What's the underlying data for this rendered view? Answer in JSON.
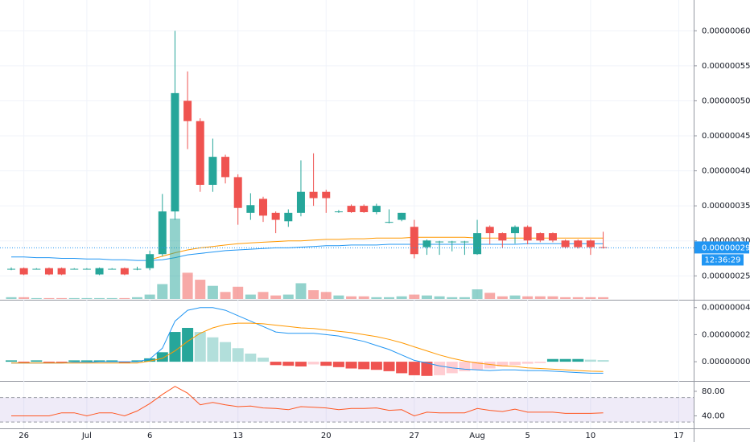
{
  "chart_data": [
    {
      "type": "candlestick",
      "categories": [
        null,
        "26",
        null,
        null,
        null,
        null,
        "Jul",
        null,
        null,
        null,
        null,
        "6",
        null,
        null,
        null,
        null,
        null,
        null,
        "13",
        null,
        null,
        null,
        null,
        null,
        null,
        "20",
        null,
        null,
        null,
        null,
        null,
        null,
        "27",
        null,
        null,
        null,
        null,
        "Aug",
        null,
        null,
        null,
        "5",
        null,
        null,
        null,
        null,
        "10",
        null,
        null,
        null,
        null,
        null,
        null,
        "17"
      ],
      "open": [
        2.6e-07,
        2.61e-07,
        2.6e-07,
        2.61e-07,
        2.61e-07,
        2.6e-07,
        2.6e-07,
        2.52e-07,
        2.6e-07,
        2.61e-07,
        2.6e-07,
        2.61e-07,
        2.81e-07,
        3.42e-07,
        5e-07,
        4.71e-07,
        3.8e-07,
        4.2e-07,
        3.91e-07,
        3.4e-07,
        3.6e-07,
        3.4e-07,
        3.28e-07,
        3.4e-07,
        3.7e-07,
        3.7e-07,
        3.42e-07,
        3.5e-07,
        3.5e-07,
        3.41e-07,
        3.27e-07,
        3.3e-07,
        3.2e-07,
        2.91e-07,
        2.99e-07,
        2.99e-07,
        2.99e-07,
        2.81e-07,
        3.2e-07,
        3.11e-07,
        3.11e-07,
        3.2e-07,
        3.11e-07,
        3.11e-07,
        3.005e-07,
        3.005e-07,
        3.005e-07,
        2.91e-07,
        null,
        null,
        null,
        null,
        null,
        null
      ],
      "high": [
        2.62e-07,
        2.62e-07,
        2.61e-07,
        2.62e-07,
        2.62e-07,
        2.61e-07,
        2.61e-07,
        2.62e-07,
        2.61e-07,
        2.62e-07,
        2.63e-07,
        2.86e-07,
        3.67e-07,
        6e-07,
        5.42e-07,
        4.75e-07,
        4.46e-07,
        4.23e-07,
        3.95e-07,
        3.68e-07,
        3.63e-07,
        3.42e-07,
        3.45e-07,
        4.15e-07,
        4.25e-07,
        3.73e-07,
        3.44e-07,
        3.52e-07,
        3.52e-07,
        3.53e-07,
        3.45e-07,
        3.4e-07,
        3.3e-07,
        3.02e-07,
        3e-07,
        3e-07,
        3e-07,
        3.3e-07,
        3.22e-07,
        3.12e-07,
        3.22e-07,
        3.22e-07,
        3.12e-07,
        3.12e-07,
        3.02e-07,
        3.02e-07,
        3.02e-07,
        3.13e-07,
        null,
        null,
        null,
        null,
        null,
        null
      ],
      "low": [
        2.58e-07,
        2.51e-07,
        2.59e-07,
        2.51e-07,
        2.51e-07,
        2.59e-07,
        2.59e-07,
        2.51e-07,
        2.59e-07,
        2.51e-07,
        2.58e-07,
        2.58e-07,
        2.78e-07,
        3.3e-07,
        4.31e-07,
        3.7e-07,
        3.7e-07,
        3.82e-07,
        3.23e-07,
        3.3e-07,
        3.27e-07,
        3.11e-07,
        3.2e-07,
        3.35e-07,
        3.5e-07,
        3.4e-07,
        3.4e-07,
        3.4e-07,
        3.4e-07,
        3.38e-07,
        3.25e-07,
        3.28e-07,
        2.75e-07,
        2.8e-07,
        2.8e-07,
        2.85e-07,
        2.8e-07,
        2.8e-07,
        2.95e-07,
        2.9e-07,
        2.96e-07,
        2.95e-07,
        2.98e-07,
        2.98e-07,
        2.89e-07,
        2.89e-07,
        2.8e-07,
        2.89e-07,
        null,
        null,
        null,
        null,
        null,
        null
      ],
      "close": [
        2.6e-07,
        2.52e-07,
        2.6e-07,
        2.52e-07,
        2.52e-07,
        2.6e-07,
        2.6e-07,
        2.61e-07,
        2.6e-07,
        2.52e-07,
        2.6e-07,
        2.81e-07,
        3.42e-07,
        5.11e-07,
        4.71e-07,
        3.8e-07,
        4.2e-07,
        3.91e-07,
        3.47e-07,
        3.51e-07,
        3.36e-07,
        3.3e-07,
        3.4e-07,
        3.7e-07,
        3.61e-07,
        3.61e-07,
        3.42e-07,
        3.41e-07,
        3.41e-07,
        3.5e-07,
        3.27e-07,
        3.4e-07,
        2.81e-07,
        3.005e-07,
        2.99e-07,
        2.99e-07,
        2.99e-07,
        3.11e-07,
        3.11e-07,
        3.005e-07,
        3.2e-07,
        3.005e-07,
        3.005e-07,
        3.005e-07,
        2.91e-07,
        2.91e-07,
        2.91e-07,
        2.9e-07,
        null,
        null,
        null,
        null,
        null,
        null
      ],
      "up_color": "#26a69a",
      "down_color": "#ef5350",
      "series": [
        {
          "color": "#2196f3",
          "values": [
            2.77e-07,
            2.77e-07,
            2.76e-07,
            2.76e-07,
            2.75e-07,
            2.75e-07,
            2.74e-07,
            2.74e-07,
            2.73e-07,
            2.73e-07,
            2.72e-07,
            2.72e-07,
            2.73e-07,
            2.76e-07,
            2.8e-07,
            2.82e-07,
            2.84e-07,
            2.86e-07,
            2.87e-07,
            2.88e-07,
            2.89e-07,
            2.9e-07,
            2.9e-07,
            2.91e-07,
            2.92e-07,
            2.93e-07,
            2.93e-07,
            2.94e-07,
            2.94e-07,
            2.94e-07,
            2.95e-07,
            2.95e-07,
            2.95e-07,
            2.95e-07,
            2.95e-07,
            2.95e-07,
            2.95e-07,
            2.95e-07,
            2.95e-07,
            2.95e-07,
            2.95e-07,
            2.96e-07,
            2.96e-07,
            2.96e-07,
            2.96e-07,
            2.96e-07,
            2.96e-07,
            2.96e-07,
            null,
            null,
            null,
            null,
            null,
            null
          ]
        },
        {
          "color": "#ff9800",
          "values": [
            null,
            null,
            null,
            null,
            null,
            null,
            null,
            null,
            null,
            null,
            null,
            2.73e-07,
            2.78e-07,
            2.83e-07,
            2.87e-07,
            2.9e-07,
            2.92e-07,
            2.94e-07,
            2.96e-07,
            2.97e-07,
            2.98e-07,
            2.99e-07,
            3e-07,
            3e-07,
            3.01e-07,
            3.02e-07,
            3.02e-07,
            3.03e-07,
            3.03e-07,
            3.04e-07,
            3.04e-07,
            3.04e-07,
            3.05e-07,
            3.05e-07,
            3.05e-07,
            3.05e-07,
            3.05e-07,
            3.04e-07,
            3.04e-07,
            3.04e-07,
            3.04e-07,
            3.04e-07,
            3.04e-07,
            3.04e-07,
            3.04e-07,
            3.04e-07,
            3.04e-07,
            3.04e-07,
            null,
            null,
            null,
            null,
            null,
            null
          ]
        }
      ],
      "ylim": [
        2.17e-07,
        6.44e-07
      ],
      "yticks": [
        {
          "value": 2.5e-07,
          "label": "0.00000025"
        },
        {
          "value": 3e-07,
          "label": "0.00000030"
        },
        {
          "value": 3.5e-07,
          "label": "0.00000035"
        },
        {
          "value": 4e-07,
          "label": "0.00000040"
        },
        {
          "value": 4.5e-07,
          "label": "0.00000045"
        },
        {
          "value": 5e-07,
          "label": "0.00000050"
        },
        {
          "value": 5.5e-07,
          "label": "0.00000055"
        },
        {
          "value": 6e-07,
          "label": "0.00000060"
        }
      ],
      "last_price": {
        "value": 2.9e-07,
        "label": "0.00000029"
      },
      "last_color": "#2196f3",
      "countdown": "12:36:29",
      "grid": true
    },
    {
      "type": "bar",
      "values": [
        2,
        2,
        1,
        1,
        1,
        1,
        1,
        1,
        1,
        1,
        2,
        5,
        17,
        92,
        30,
        22,
        15,
        8,
        14,
        5,
        8,
        4,
        5,
        18,
        10,
        8,
        4,
        3,
        3,
        2,
        2,
        3,
        5,
        4,
        3,
        2,
        2,
        11,
        7,
        3,
        4,
        3,
        3,
        3,
        2,
        2,
        2,
        2,
        null,
        null,
        null,
        null,
        null,
        null
      ],
      "up_color": "rgba(38,166,154,0.5)",
      "down_color": "rgba(239,83,80,0.5)"
    },
    {
      "type": "macd",
      "histogram": [
        1e-09,
        -1e-09,
        1e-09,
        -1e-09,
        -1e-09,
        1e-09,
        1e-09,
        1e-09,
        1e-09,
        -1e-09,
        1e-09,
        2.5e-09,
        7e-09,
        2.2e-08,
        2.5e-08,
        2.2e-08,
        1.8e-08,
        1.45e-08,
        1e-08,
        6e-09,
        3e-09,
        -2.5e-09,
        -3e-09,
        -3.5e-09,
        -2e-09,
        -3e-09,
        -4e-09,
        -5e-09,
        -5.5e-09,
        -6e-09,
        -7e-09,
        -8.5e-09,
        -1e-08,
        -1.05e-08,
        -1e-08,
        -8.5e-09,
        -7e-09,
        -6e-09,
        -5e-09,
        -3.5e-09,
        -2.5e-09,
        -1.5e-09,
        -1e-09,
        2e-09,
        2e-09,
        2e-09,
        1.5e-09,
        1.2e-09,
        null,
        null,
        null,
        null,
        null,
        null
      ],
      "histogram_colors": [
        "#26a69a",
        "#b2dfdb",
        "#ef5350",
        "#ffcdd2"
      ],
      "series": [
        {
          "color": "#2196f3",
          "values": [
            -1e-09,
            -1e-09,
            -1e-09,
            -1e-09,
            -1e-09,
            -5e-10,
            -5e-10,
            0,
            0,
            0,
            0,
            2e-09,
            1e-08,
            3e-08,
            3.8e-08,
            4e-08,
            4e-08,
            3.8e-08,
            3.4e-08,
            3e-08,
            2.6e-08,
            2.2e-08,
            2.1e-08,
            2.1e-08,
            2.1e-08,
            2e-08,
            1.9e-08,
            1.7e-08,
            1.5e-08,
            1.2e-08,
            9e-09,
            5e-09,
            1e-09,
            -1e-09,
            -3e-09,
            -4.5e-09,
            -5.5e-09,
            -6e-09,
            -6.5e-09,
            -6e-09,
            -6e-09,
            -6.5e-09,
            -6.5e-09,
            -7e-09,
            -7.5e-09,
            -8e-09,
            -8.5e-09,
            -8.5e-09,
            null,
            null,
            null,
            null,
            null,
            null
          ]
        },
        {
          "color": "#ff9800",
          "values": [
            -1e-09,
            -1e-09,
            -1e-09,
            -1e-09,
            -1e-09,
            -1e-09,
            -1e-09,
            -1e-09,
            -1e-09,
            -1e-09,
            -1e-09,
            5e-10,
            2.5e-09,
            8e-09,
            1.5e-08,
            2.1e-08,
            2.5e-08,
            2.75e-08,
            2.85e-08,
            2.85e-08,
            2.8e-08,
            2.7e-08,
            2.6e-08,
            2.5e-08,
            2.45e-08,
            2.35e-08,
            2.25e-08,
            2.15e-08,
            2e-08,
            1.85e-08,
            1.65e-08,
            1.4e-08,
            1.1e-08,
            8e-09,
            5e-09,
            2.5e-09,
            5e-10,
            -1e-09,
            -2e-09,
            -3e-09,
            -3.5e-09,
            -4.5e-09,
            -5e-09,
            -5.5e-09,
            -6e-09,
            -6.5e-09,
            -7e-09,
            -7.2e-09,
            null,
            null,
            null,
            null,
            null,
            null
          ]
        }
      ],
      "ylim": [
        -1.3e-08,
        4.4e-08
      ],
      "yticks": [
        {
          "value": 0,
          "label": "0.00000000"
        },
        {
          "value": 2e-08,
          "label": "0.00000002"
        },
        {
          "value": 4e-08,
          "label": "0.00000004"
        }
      ]
    },
    {
      "type": "line",
      "values": [
        40,
        40,
        40,
        40,
        45,
        45,
        40,
        45,
        45,
        40,
        48,
        60,
        75,
        88,
        77,
        58,
        62,
        58,
        55,
        56,
        53,
        52,
        50,
        55,
        54,
        53,
        50,
        52,
        52,
        53,
        49,
        50,
        40,
        46,
        45,
        45,
        45,
        52,
        49,
        47,
        51,
        46,
        46,
        46,
        44,
        44,
        44,
        45,
        null,
        null,
        null,
        null,
        null,
        null
      ],
      "color": "#ff5722",
      "band": [
        30,
        70
      ],
      "band_color": "rgba(126,87,194,0.12)",
      "ylim": [
        21,
        93
      ],
      "yticks": [
        {
          "value": 40,
          "label": "40.00"
        },
        {
          "value": 80,
          "label": "80.00"
        }
      ]
    }
  ]
}
